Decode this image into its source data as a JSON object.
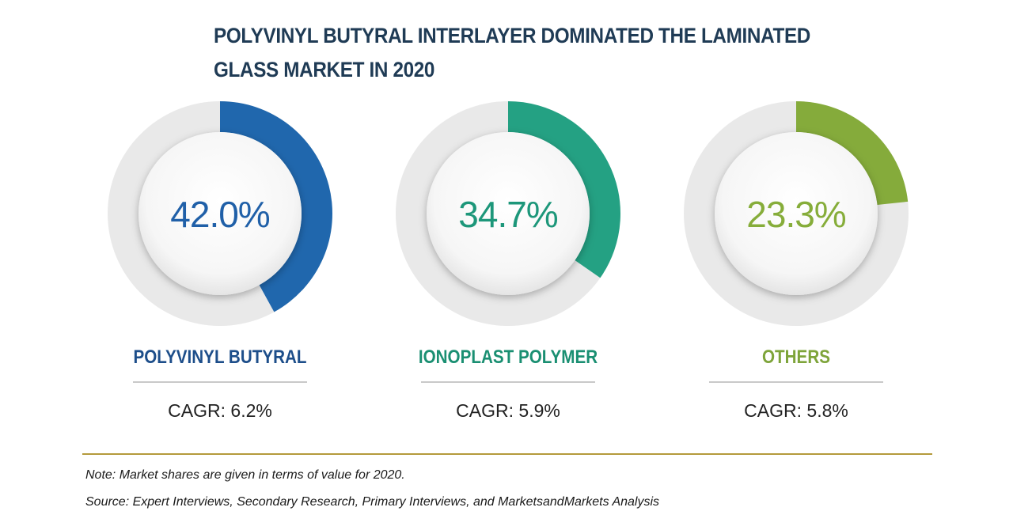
{
  "chart_data": {
    "type": "pie",
    "variant": "donut",
    "title": "POLYVINYL BUTYRAL INTERLAYER DOMINATED THE LAMINATED GLASS MARKET IN 2020",
    "unit": "%",
    "items": [
      {
        "category": "POLYVINYL BUTYRAL",
        "value": 42.0,
        "display": "42.0%",
        "cagr": "CAGR: 6.2%",
        "color": "#2067ad",
        "text_color": "#2060a8",
        "label_color": "#1d4e8a"
      },
      {
        "category": "IONOPLAST POLYMER",
        "value": 34.7,
        "display": "34.7%",
        "cagr": "CAGR: 5.9%",
        "color": "#24a183",
        "text_color": "#1d977a",
        "label_color": "#1a8f72"
      },
      {
        "category": "OTHERS",
        "value": 23.3,
        "display": "23.3%",
        "cagr": "CAGR: 5.8%",
        "color": "#85ab3b",
        "text_color": "#86ad3a",
        "label_color": "#7ea43a"
      }
    ]
  },
  "note": "Note: Market shares are given in terms of value for 2020.",
  "source": "Source: Expert Interviews, Secondary Research, Primary Interviews, and MarketsandMarkets Analysis"
}
